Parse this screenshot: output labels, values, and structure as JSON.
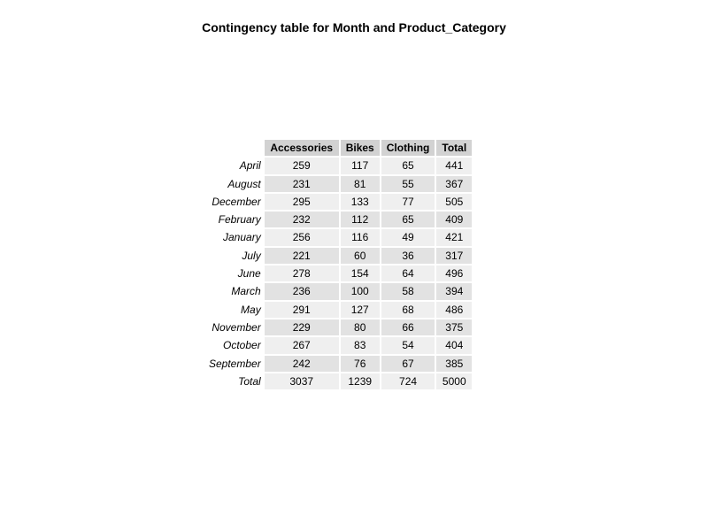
{
  "chart_data": {
    "type": "table",
    "title": "Contingency table for Month and Product_Category",
    "columns": [
      "Accessories",
      "Bikes",
      "Clothing",
      "Total"
    ],
    "rows": [
      {
        "label": "April",
        "values": [
          "259",
          "117",
          "65",
          "441"
        ]
      },
      {
        "label": "August",
        "values": [
          "231",
          "81",
          "55",
          "367"
        ]
      },
      {
        "label": "December",
        "values": [
          "295",
          "133",
          "77",
          "505"
        ]
      },
      {
        "label": "February",
        "values": [
          "232",
          "112",
          "65",
          "409"
        ]
      },
      {
        "label": "January",
        "values": [
          "256",
          "116",
          "49",
          "421"
        ]
      },
      {
        "label": "July",
        "values": [
          "221",
          "60",
          "36",
          "317"
        ]
      },
      {
        "label": "June",
        "values": [
          "278",
          "154",
          "64",
          "496"
        ]
      },
      {
        "label": "March",
        "values": [
          "236",
          "100",
          "58",
          "394"
        ]
      },
      {
        "label": "May",
        "values": [
          "291",
          "127",
          "68",
          "486"
        ]
      },
      {
        "label": "November",
        "values": [
          "229",
          "80",
          "66",
          "375"
        ]
      },
      {
        "label": "October",
        "values": [
          "267",
          "83",
          "54",
          "404"
        ]
      },
      {
        "label": "September",
        "values": [
          "242",
          "76",
          "67",
          "385"
        ]
      },
      {
        "label": "Total",
        "values": [
          "3037",
          "1239",
          "724",
          "5000"
        ]
      }
    ],
    "colors": {
      "header_bg": "#d2d2d2",
      "row_bg_odd": "#efefef",
      "row_bg_even": "#e2e2e2"
    }
  }
}
